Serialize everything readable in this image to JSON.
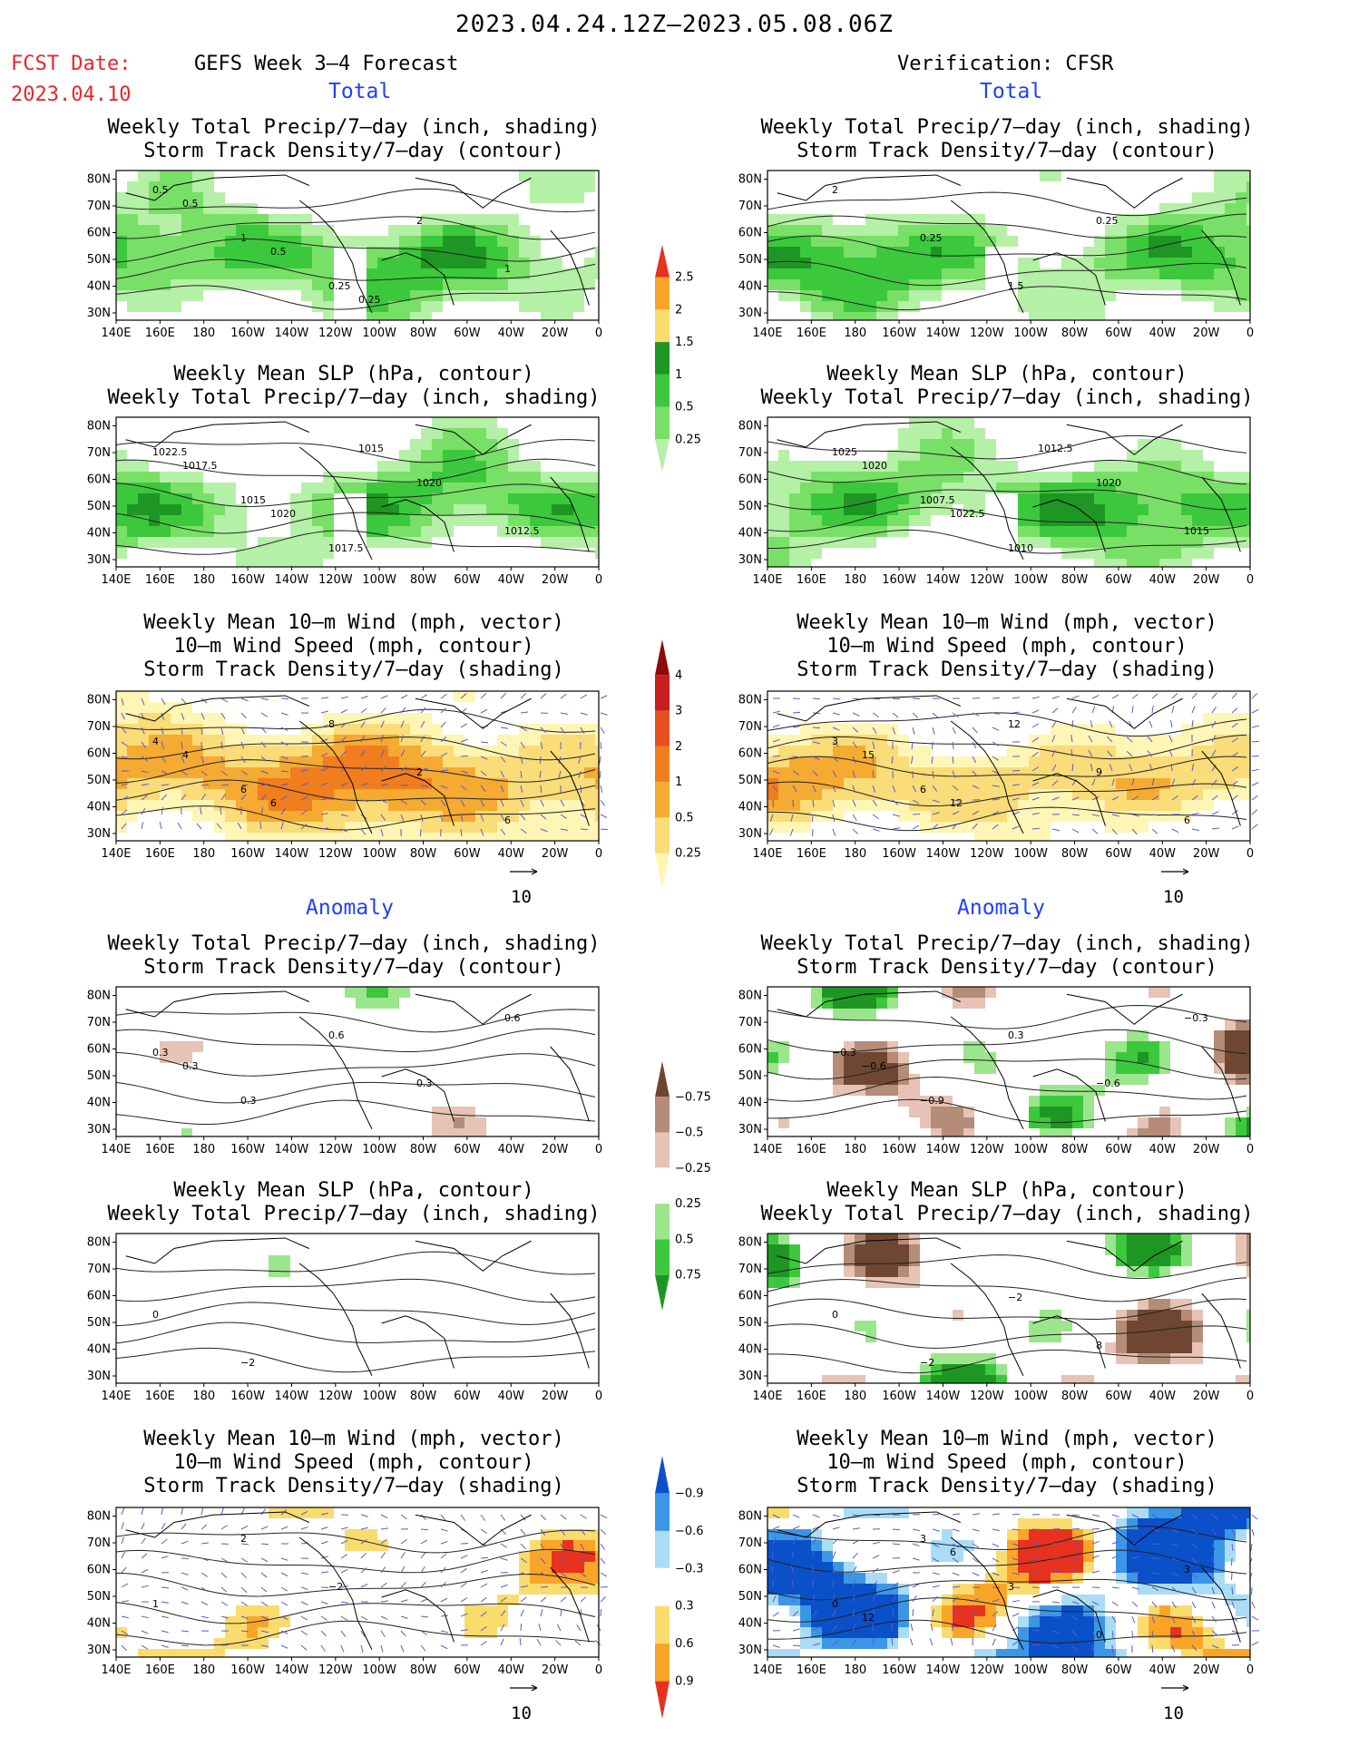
{
  "page_title": "2023.04.24.12Z–2023.05.08.06Z",
  "fcst_label": "FCST Date:",
  "fcst_date": "2023.04.10",
  "left_header": "GEFS Week 3–4 Forecast",
  "right_header": "Verification: CFSR",
  "section_total": "Total",
  "section_anomaly": "Anomaly",
  "vector_scale": "10",
  "titles": {
    "precip_storm": [
      "Weekly Total Precip/7–day (inch, shading)",
      "Storm Track Density/7–day (contour)"
    ],
    "slp_precip": [
      "Weekly Mean SLP (hPa, contour)",
      "Weekly Total Precip/7–day (inch, shading)"
    ],
    "wind_storm": [
      "Weekly Mean 10–m Wind (mph, vector)",
      "10–m Wind Speed (mph, contour)",
      "Storm Track Density/7–day (shading)"
    ]
  },
  "x_ticks": [
    "140E",
    "160E",
    "180",
    "160W",
    "140W",
    "120W",
    "100W",
    "80W",
    "60W",
    "40W",
    "20W",
    "0"
  ],
  "y_ticks": [
    "30N",
    "40N",
    "50N",
    "60N",
    "70N",
    "80N"
  ],
  "colorbars": {
    "precip_total": {
      "labels": [
        "0.25",
        "0.5",
        "1",
        "1.5",
        "2",
        "2.5"
      ],
      "colors": [
        "#b4f0a6",
        "#78e066",
        "#3cc83c",
        "#1e9623",
        "#fadc6e",
        "#faa528",
        "#e6321e"
      ]
    },
    "storm_total": {
      "labels": [
        "0.25",
        "0.5",
        "1",
        "2",
        "3",
        "4"
      ],
      "colors": [
        "#fff5b4",
        "#fadc78",
        "#f5aa32",
        "#f07d1e",
        "#e6501e",
        "#c81e1e",
        "#8c0a0a"
      ]
    },
    "precip_anom": {
      "labels": [
        "0.75",
        "0.5",
        "0.25",
        "−0.25",
        "−0.5",
        "−0.75"
      ],
      "colors": [
        "#1e9623",
        "#3cc83c",
        "#9be68c",
        "#ffffff",
        "#e6c3b4",
        "#b48c78",
        "#6e4632"
      ]
    },
    "storm_anom": {
      "labels": [
        "0.9",
        "0.6",
        "0.3",
        "−0.3",
        "−0.6",
        "−0.9"
      ],
      "colors": [
        "#e6321e",
        "#faa528",
        "#fadc6e",
        "#ffffff",
        "#aadcf5",
        "#3c96e6",
        "#0a50c8"
      ]
    }
  },
  "contour_labels": {
    "p1": [
      "0.5",
      "1",
      "0.25",
      "2",
      "1",
      "0.5",
      "0.5",
      "0.25"
    ],
    "p2": [
      "2",
      "0.25",
      "1.5",
      "0.25"
    ],
    "p3": [
      "1022.5",
      "1015",
      "1017.5",
      "1020",
      "1012.5",
      "1017.5",
      "1020",
      "1015"
    ],
    "p4": [
      "1025",
      "1007.5",
      "1010",
      "1020",
      "1015",
      "1020",
      "1022.5",
      "1012.5"
    ],
    "p5": [
      "4",
      "6",
      "8",
      "2",
      "6",
      "4",
      "6"
    ],
    "p6": [
      "3",
      "6",
      "12",
      "9",
      "6",
      "15",
      "12"
    ],
    "p7": [
      "0.3",
      "0.3",
      "0.6",
      "0.3",
      "0.6",
      "0.3"
    ],
    "p8": [
      "−0.3",
      "−0.9",
      "0.3",
      "−0.6",
      "−0.3",
      "−0.6"
    ],
    "p9": [
      "0",
      "−2"
    ],
    "p10": [
      "0",
      "−2",
      "−2",
      "8"
    ],
    "p11": [
      "1",
      "2",
      "−2"
    ],
    "p12": [
      "0",
      "3",
      "3",
      "0",
      "3",
      "12",
      "6"
    ]
  },
  "chart_data": [
    {
      "type": "heatmap",
      "panel": "forecast-total-precip-storm",
      "title": "Weekly Total Precip/7-day (inch, shading) / Storm Track Density/7-day (contour)",
      "x_range": [
        "140E",
        "0"
      ],
      "y_range": [
        "30N",
        "80N"
      ],
      "shading_levels": [
        0.25,
        0.5,
        1,
        1.5,
        2,
        2.5
      ]
    },
    {
      "type": "heatmap",
      "panel": "verification-total-precip-storm",
      "title": "Weekly Total Precip/7-day (inch, shading) / Storm Track Density/7-day (contour)",
      "x_range": [
        "140E",
        "0"
      ],
      "y_range": [
        "30N",
        "80N"
      ],
      "shading_levels": [
        0.25,
        0.5,
        1,
        1.5,
        2,
        2.5
      ]
    },
    {
      "type": "heatmap",
      "panel": "forecast-total-slp-precip",
      "title": "Weekly Mean SLP (hPa, contour) / Weekly Total Precip/7-day (inch, shading)",
      "contour_values": [
        1012.5,
        1015,
        1017.5,
        1020,
        1022.5
      ]
    },
    {
      "type": "heatmap",
      "panel": "verification-total-slp-precip",
      "title": "Weekly Mean SLP (hPa, contour) / Weekly Total Precip/7-day (inch, shading)",
      "contour_values": [
        1007.5,
        1010,
        1012.5,
        1015,
        1020,
        1022.5,
        1025
      ]
    },
    {
      "type": "heatmap",
      "panel": "forecast-total-wind-storm",
      "shading_levels": [
        0.25,
        0.5,
        1,
        2,
        3,
        4
      ]
    },
    {
      "type": "heatmap",
      "panel": "verification-total-wind-storm",
      "shading_levels": [
        0.25,
        0.5,
        1,
        2,
        3,
        4
      ]
    },
    {
      "type": "heatmap",
      "panel": "forecast-anom-precip-storm",
      "shading_levels": [
        -0.75,
        -0.5,
        -0.25,
        0.25,
        0.5,
        0.75
      ]
    },
    {
      "type": "heatmap",
      "panel": "verification-anom-precip-storm",
      "shading_levels": [
        -0.75,
        -0.5,
        -0.25,
        0.25,
        0.5,
        0.75
      ]
    },
    {
      "type": "heatmap",
      "panel": "forecast-anom-slp-precip",
      "shading_levels": [
        -0.75,
        -0.5,
        -0.25,
        0.25,
        0.5,
        0.75
      ]
    },
    {
      "type": "heatmap",
      "panel": "verification-anom-slp-precip",
      "shading_levels": [
        -0.75,
        -0.5,
        -0.25,
        0.25,
        0.5,
        0.75
      ]
    },
    {
      "type": "heatmap",
      "panel": "forecast-anom-wind-storm",
      "shading_levels": [
        -0.9,
        -0.6,
        -0.3,
        0.3,
        0.6,
        0.9
      ]
    },
    {
      "type": "heatmap",
      "panel": "verification-anom-wind-storm",
      "shading_levels": [
        -0.9,
        -0.6,
        -0.3,
        0.3,
        0.6,
        0.9
      ]
    }
  ]
}
